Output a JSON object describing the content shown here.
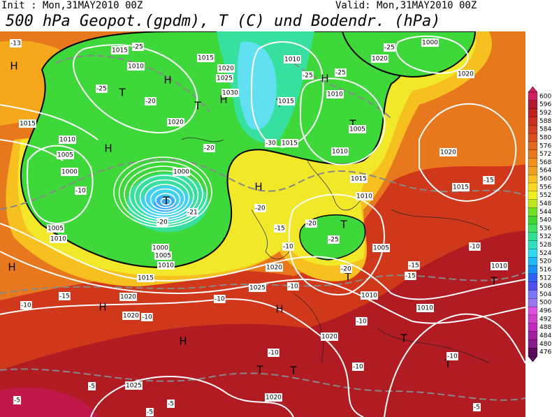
{
  "header": {
    "init": "Init : Mon,31MAY2010 00Z",
    "valid": "Valid: Mon,31MAY2010 00Z",
    "title": "500 hPa Geopot.(gpdm), T (C) und Bodendr. (hPa)"
  },
  "colorbar": {
    "levels": [
      600,
      596,
      592,
      588,
      584,
      580,
      576,
      572,
      568,
      564,
      560,
      556,
      552,
      548,
      544,
      540,
      536,
      532,
      528,
      524,
      520,
      516,
      512,
      508,
      504,
      500,
      496,
      492,
      488,
      484,
      480,
      476
    ],
    "colors": [
      "#d02060",
      "#b01830",
      "#c02020",
      "#c83020",
      "#d04020",
      "#d85020",
      "#e06820",
      "#e87820",
      "#f09020",
      "#f0a020",
      "#f8c020",
      "#f8d820",
      "#f0f020",
      "#c0e820",
      "#70e020",
      "#40d830",
      "#40e060",
      "#30e090",
      "#30e0c0",
      "#30d8f0",
      "#20b8f8",
      "#1890f8",
      "#3060f8",
      "#5050f0",
      "#7878f8",
      "#9878f0",
      "#e050e0",
      "#d040d0",
      "#c028c0",
      "#a020a0",
      "#8a1a8a",
      "#5a0a5a"
    ]
  },
  "map": {
    "pressure_centers": [
      "H",
      "T",
      "T",
      "H",
      "T",
      "H",
      "H",
      "T",
      "T",
      "H",
      "T",
      "T",
      "H",
      "H",
      "H",
      "T",
      "T",
      "H",
      "T",
      "T",
      "H",
      "T"
    ],
    "isobar_labels": [
      "1015",
      "1010",
      "1015",
      "1020",
      "1025",
      "1030",
      "1010",
      "1015",
      "1010",
      "1005",
      "1010",
      "1015",
      "1020",
      "1015",
      "1010",
      "1005",
      "1000",
      "1005",
      "1010",
      "1000",
      "1005",
      "1010",
      "1015",
      "1020",
      "1025",
      "1020",
      "1020",
      "1020",
      "1025",
      "1020",
      "1010",
      "1010",
      "1010",
      "1005",
      "1015",
      "1020",
      "1010",
      "1015",
      "1000",
      "1020",
      "1020",
      "1000"
    ],
    "temperature_labels": [
      "-25",
      "-25",
      "-20",
      "-20",
      "-30",
      "-25",
      "-25",
      "-25",
      "-20",
      "-21",
      "-20",
      "-15",
      "-20",
      "-25",
      "-10",
      "-20",
      "-15",
      "-10",
      "-10",
      "-10",
      "-10",
      "-10",
      "-10",
      "-10",
      "-10",
      "-10",
      "-5",
      "-5",
      "-5",
      "-5",
      "-5",
      "-15",
      "-15",
      "-13",
      "-10",
      "-15"
    ]
  }
}
